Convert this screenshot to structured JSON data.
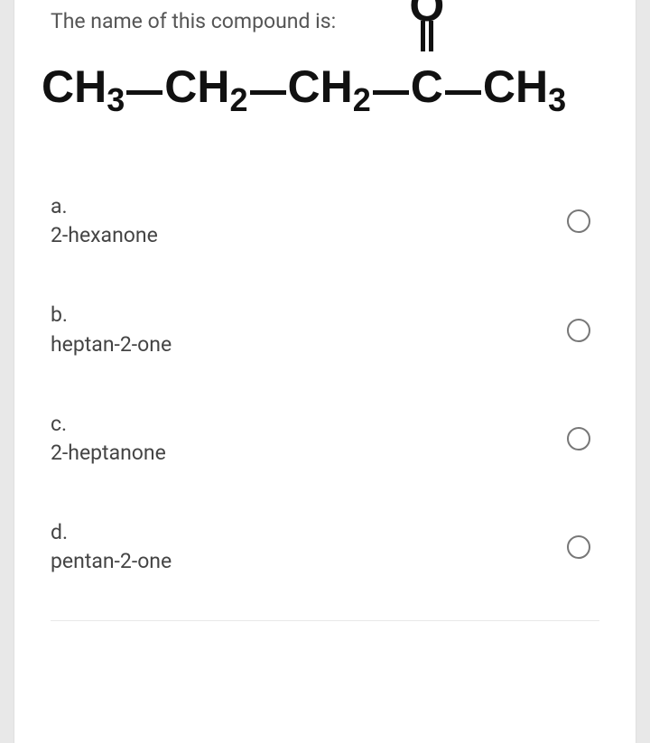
{
  "question": {
    "prompt": "The name of this compound is:",
    "formula": {
      "groups": [
        "CH",
        "CH",
        "CH",
        "C",
        "CH"
      ],
      "subscripts": [
        "3",
        "2",
        "2",
        "",
        "3"
      ],
      "oxygen_label": "O",
      "bond_color": "#111111",
      "text_color": "#111111",
      "font_size": 50,
      "sub_font_size": 36
    }
  },
  "options": [
    {
      "letter": "a.",
      "text": "2-hexanone"
    },
    {
      "letter": "b.",
      "text": "heptan-2-one"
    },
    {
      "letter": "c.",
      "text": "2-heptanone"
    },
    {
      "letter": "d.",
      "text": "pentan-2-one"
    }
  ],
  "styling": {
    "card_background": "#ffffff",
    "page_background": "#e8e8e8",
    "question_color": "#555555",
    "option_color": "#444444",
    "radio_border": "#777777",
    "font_family": "Roboto, Arial, sans-serif",
    "question_fontsize": 23,
    "option_fontsize": 23
  }
}
